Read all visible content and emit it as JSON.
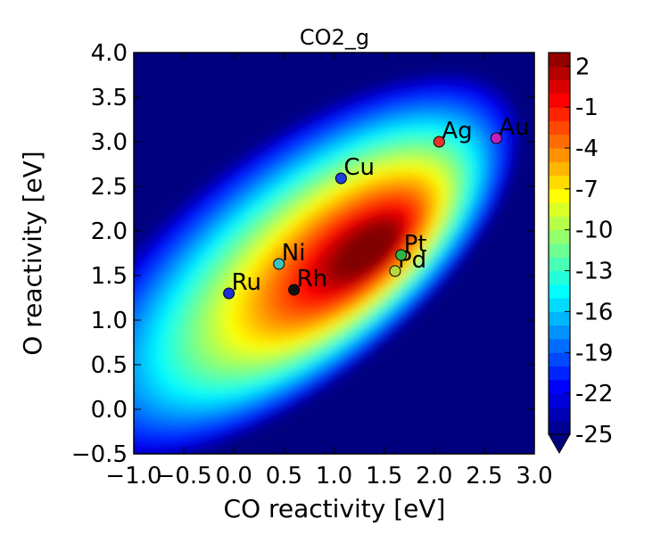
{
  "chart_data": {
    "type": "heatmap",
    "title": "CO2_g",
    "xlabel": "CO reactivity [eV]",
    "ylabel": "O reactivity [eV]",
    "xlim": [
      -1.0,
      3.0
    ],
    "ylim": [
      -0.5,
      4.0
    ],
    "x_ticks": [
      "−1.0",
      "−0.5",
      "0.0",
      "0.5",
      "1.0",
      "1.5",
      "2.0",
      "2.5",
      "3.0"
    ],
    "y_ticks": [
      "−0.5",
      "0.0",
      "0.5",
      "1.0",
      "1.5",
      "2.0",
      "2.5",
      "3.0",
      "3.5",
      "4.0"
    ],
    "colorbar": {
      "min": -25,
      "max": 3,
      "ticks": [
        "2",
        "-1",
        "-4",
        "-7",
        "-10",
        "-13",
        "-16",
        "-19",
        "-22",
        "-25"
      ],
      "extend": "min",
      "colormap": "jet"
    },
    "contour_peak": {
      "x": 1.4,
      "y": 1.8,
      "value": 3
    },
    "points": [
      {
        "label": "Ru",
        "x": -0.05,
        "y": 1.3,
        "color": "#1c2fd6"
      },
      {
        "label": "Rh",
        "x": 0.6,
        "y": 1.34,
        "color": "#111111"
      },
      {
        "label": "Ni",
        "x": 0.45,
        "y": 1.63,
        "color": "#38c5c0"
      },
      {
        "label": "Cu",
        "x": 1.07,
        "y": 2.59,
        "color": "#1f3fe0"
      },
      {
        "label": "Pd",
        "x": 1.61,
        "y": 1.55,
        "color": "#b8d83a"
      },
      {
        "label": "Pt",
        "x": 1.67,
        "y": 1.73,
        "color": "#2eb34b"
      },
      {
        "label": "Ag",
        "x": 2.05,
        "y": 3.0,
        "color": "#e8332a"
      },
      {
        "label": "Au",
        "x": 2.62,
        "y": 3.04,
        "color": "#c21fbf"
      }
    ]
  }
}
